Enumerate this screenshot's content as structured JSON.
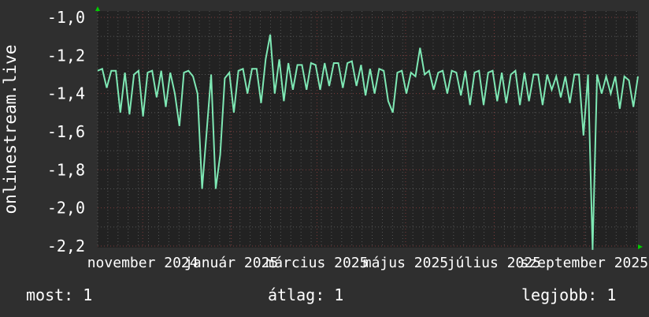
{
  "chart_data": {
    "type": "line",
    "ylabel": "onlinestream.live",
    "xlabel": "",
    "ylim": [
      -2.2,
      -1.0
    ],
    "y_major_step": 0.2,
    "y_minor_step": 0.1,
    "yticks": [
      "-1,0",
      "-1,2",
      "-1,4",
      "-1,6",
      "-1,8",
      "-2,0",
      "-2,2"
    ],
    "xlim": [
      "2024-10-01",
      "2025-10-08"
    ],
    "xticks": [
      {
        "date": "2024-11-01",
        "label": "november 2024"
      },
      {
        "date": "2025-01-01",
        "label": "január 2025"
      },
      {
        "date": "2025-03-01",
        "label": "március 2025"
      },
      {
        "date": "2025-05-01",
        "label": "május 2025"
      },
      {
        "date": "2025-07-01",
        "label": "július 2025"
      },
      {
        "date": "2025-09-01",
        "label": "szeptember 2025"
      }
    ],
    "grid": true,
    "series": [
      {
        "color": "#7ee8b4",
        "values": [
          -1.28,
          -1.27,
          -1.37,
          -1.28,
          -1.28,
          -1.5,
          -1.29,
          -1.51,
          -1.3,
          -1.28,
          -1.52,
          -1.29,
          -1.28,
          -1.42,
          -1.28,
          -1.47,
          -1.29,
          -1.4,
          -1.57,
          -1.29,
          -1.28,
          -1.31,
          -1.4,
          -1.9,
          -1.6,
          -1.3,
          -1.9,
          -1.72,
          -1.32,
          -1.29,
          -1.5,
          -1.28,
          -1.27,
          -1.4,
          -1.27,
          -1.27,
          -1.45,
          -1.22,
          -1.09,
          -1.4,
          -1.22,
          -1.44,
          -1.24,
          -1.38,
          -1.25,
          -1.25,
          -1.38,
          -1.24,
          -1.25,
          -1.38,
          -1.24,
          -1.36,
          -1.24,
          -1.24,
          -1.37,
          -1.24,
          -1.23,
          -1.36,
          -1.25,
          -1.41,
          -1.27,
          -1.4,
          -1.27,
          -1.28,
          -1.44,
          -1.5,
          -1.29,
          -1.28,
          -1.4,
          -1.29,
          -1.31,
          -1.16,
          -1.3,
          -1.28,
          -1.38,
          -1.29,
          -1.28,
          -1.4,
          -1.28,
          -1.29,
          -1.41,
          -1.28,
          -1.46,
          -1.29,
          -1.28,
          -1.46,
          -1.29,
          -1.28,
          -1.44,
          -1.29,
          -1.45,
          -1.3,
          -1.28,
          -1.46,
          -1.29,
          -1.44,
          -1.3,
          -1.3,
          -1.46,
          -1.3,
          -1.38,
          -1.31,
          -1.42,
          -1.31,
          -1.45,
          -1.3,
          -1.3,
          -1.62,
          -1.3,
          -2.22,
          -1.3,
          -1.4,
          -1.31,
          -1.4,
          -1.31,
          -1.48,
          -1.31,
          -1.33,
          -1.47,
          -1.31
        ]
      }
    ],
    "colors": {
      "background": "#2f2f2f",
      "plot": "#222222",
      "grid": "#555555",
      "major_grid": "#7a3a3a",
      "arrow": "#00cc00"
    }
  },
  "legend": {
    "current": "most: 1",
    "average": "átlag: 1",
    "max": "legjobb: 1"
  }
}
